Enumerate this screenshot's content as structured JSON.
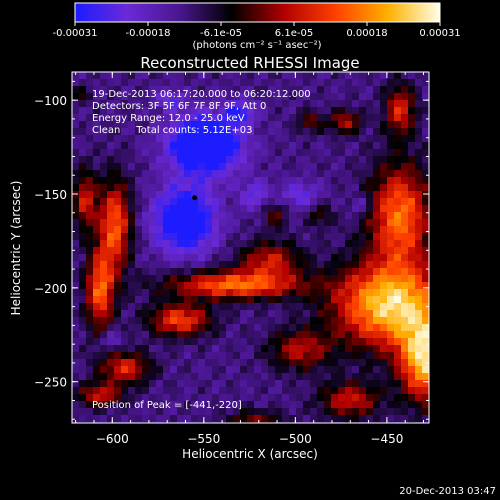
{
  "chart_data": {
    "type": "heatmap",
    "title": "Reconstructed RHESSI Image",
    "xlabel": "Heliocentric X (arcsec)",
    "ylabel": "Heliocentric Y (arcsec)",
    "x_ticks": [
      -600,
      -550,
      -500,
      -450
    ],
    "x_tick_labels": [
      "−600",
      "−550",
      "−500",
      "−450"
    ],
    "y_ticks": [
      -100,
      -150,
      -200,
      -250
    ],
    "y_tick_labels": [
      "−100",
      "−150",
      "−200",
      "−250"
    ],
    "xlim": [
      -622,
      -427
    ],
    "ylim": [
      -272,
      -85
    ],
    "annotations": [
      "19-Dec-2013 06:17:20.000 to 06:20:12.000",
      "Detectors: 3F 5F 6F 7F 8F 9F, Att 0",
      "Energy Range: 12.0 - 25.0 keV",
      "Clean     Total counts: 5.12E+03"
    ],
    "peak_label": "Position of Peak = [-441,-220]",
    "peak_position": [
      -441,
      -220
    ],
    "marker_position": [
      -555,
      -152
    ],
    "colorbar": {
      "tick_labels": [
        "-0.00031",
        "-0.00018",
        "-6.1e-05",
        "6.1e-05",
        "0.00018",
        "0.00031"
      ],
      "units_label": "(photons cm⁻² s⁻¹ asec⁻²)",
      "stops": [
        "#1c1cff",
        "#6a2ad6",
        "#4a1690",
        "#000000",
        "#b00000",
        "#ff4000",
        "#ffb000",
        "#ffffe8"
      ]
    }
  },
  "footer": {
    "timestamp": "20-Dec-2013 03:47"
  }
}
